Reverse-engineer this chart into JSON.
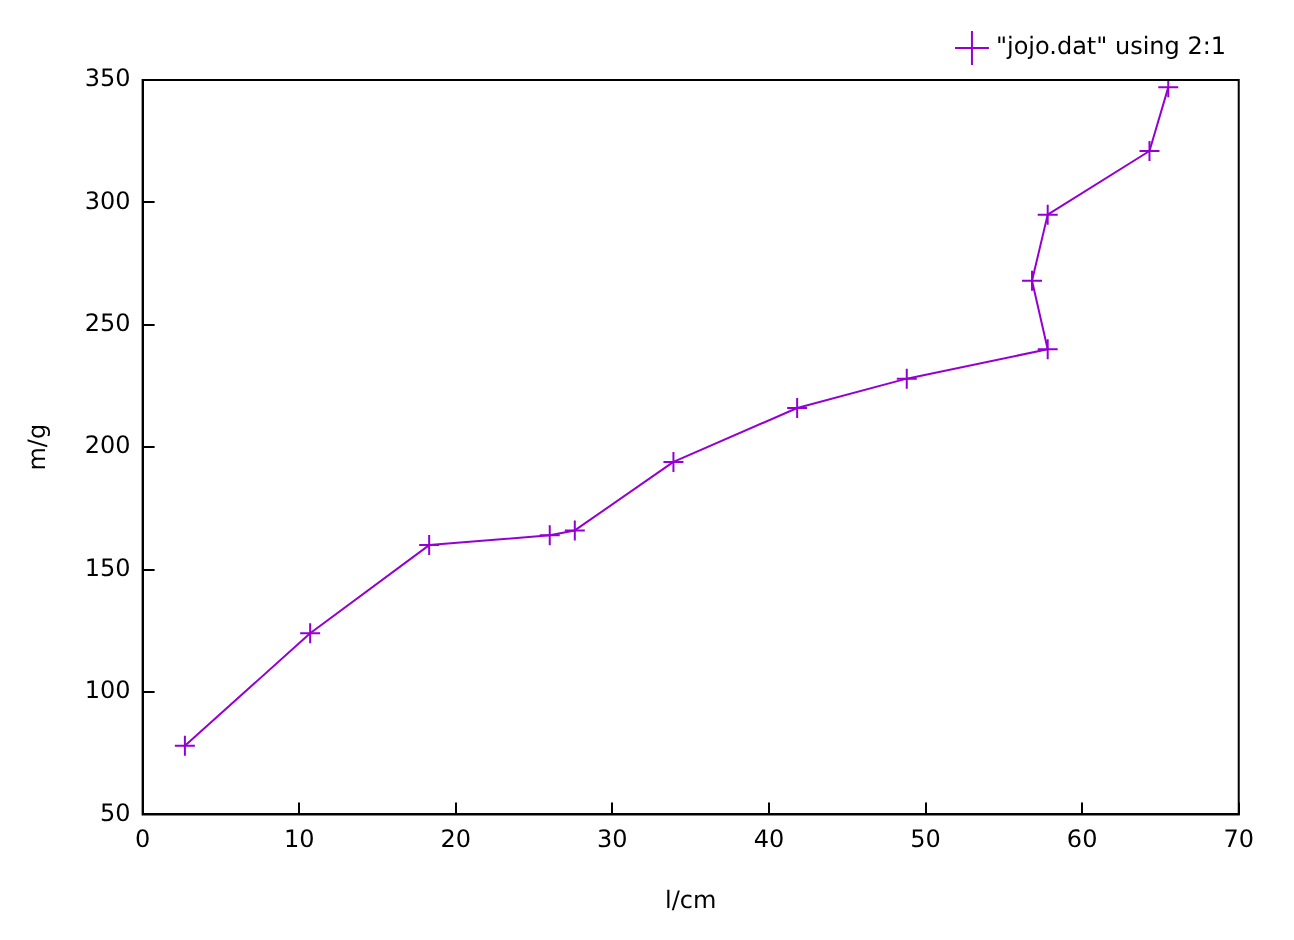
{
  "chart_data": {
    "type": "line",
    "xlabel": "l/cm",
    "ylabel": "m/g",
    "legend": "top right",
    "marker": "cross",
    "line_style": "solid",
    "grid": false,
    "xlim": [
      0,
      70
    ],
    "xticks": [
      0,
      10,
      20,
      30,
      40,
      50,
      60,
      70
    ],
    "ylim": [
      50,
      350
    ],
    "yticks": [
      50,
      100,
      150,
      200,
      250,
      300,
      350
    ],
    "series": [
      {
        "name": "\"jojo.dat\" using 2:1",
        "color": "#9400d3",
        "x": [
          2.7,
          10.7,
          18.3,
          26.0,
          27.6,
          33.9,
          41.8,
          48.8,
          57.8,
          56.8,
          57.8,
          64.3,
          65.5
        ],
        "values": [
          78,
          124,
          160,
          164,
          166,
          194,
          216,
          228,
          240,
          268,
          295,
          321,
          347
        ]
      }
    ]
  }
}
